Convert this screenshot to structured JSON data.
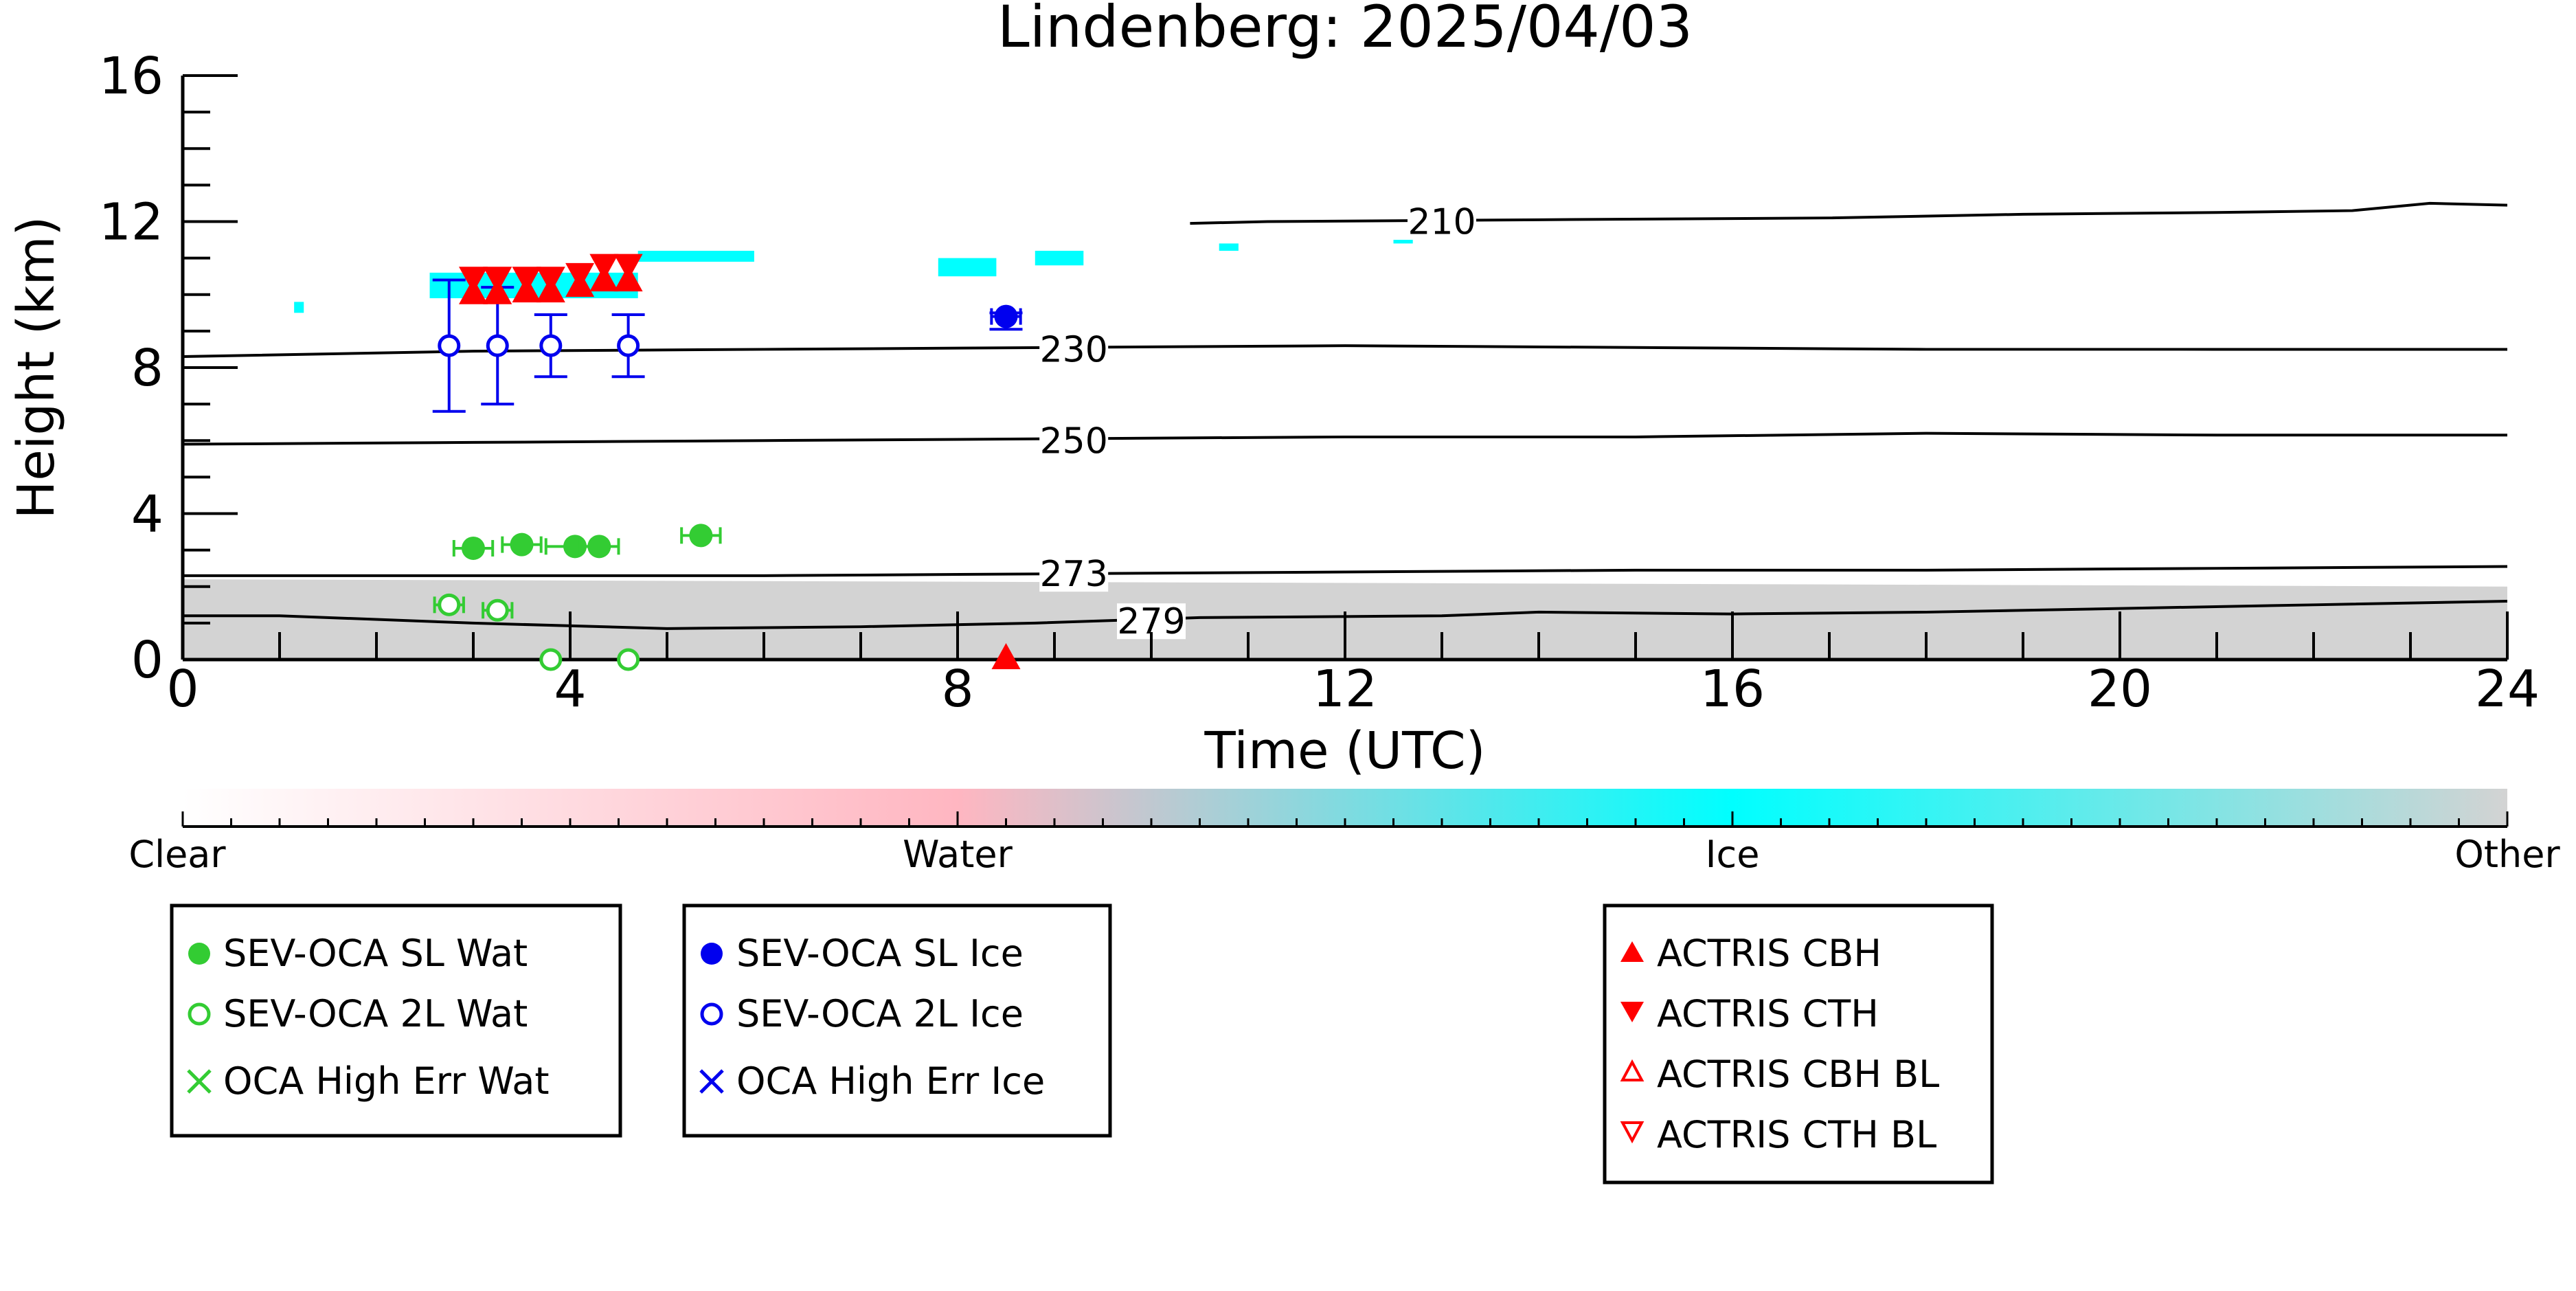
{
  "chart_data": {
    "type": "scatter",
    "title": "Lindenberg: 2025/04/03",
    "xlabel": "Time (UTC)",
    "ylabel": "Height (km)",
    "xlim": [
      0,
      24
    ],
    "ylim": [
      0,
      16
    ],
    "x_ticks": [
      "0",
      "4",
      "8",
      "12",
      "16",
      "20",
      "24"
    ],
    "y_ticks": [
      "0",
      "4",
      "8",
      "12",
      "16"
    ],
    "colors": {
      "water_green": "#33cc33",
      "ice_blue": "#0000ee",
      "actris_red": "#ff0000",
      "ice_cyan": "#00ffff",
      "other_grey": "#d3d3d3",
      "water_pink": "#ffb6c1"
    },
    "colorbar": {
      "labels": [
        "Clear",
        "Water",
        "Ice",
        "Other"
      ],
      "stops": [
        "#ffffff",
        "#ffb6c1",
        "#00ffff",
        "#d3d3d3"
      ]
    },
    "isotherms": [
      {
        "label": "210",
        "label_x": 13.0,
        "label_y": 12.0,
        "x": [
          10.4,
          11.2,
          14,
          17,
          19,
          21,
          22.4,
          23.2,
          24
        ],
        "y": [
          11.95,
          12.0,
          12.05,
          12.1,
          12.2,
          12.25,
          12.3,
          12.5,
          12.45
        ]
      },
      {
        "label": "230",
        "label_x": 9.2,
        "label_y": 8.5,
        "x": [
          0,
          3,
          6,
          9,
          12,
          15,
          18,
          21,
          24
        ],
        "y": [
          8.3,
          8.45,
          8.5,
          8.55,
          8.6,
          8.55,
          8.5,
          8.5,
          8.5
        ]
      },
      {
        "label": "250",
        "label_x": 9.2,
        "label_y": 6.0,
        "x": [
          0,
          3,
          6,
          9,
          12,
          15,
          18,
          21,
          24
        ],
        "y": [
          5.9,
          5.95,
          6.0,
          6.05,
          6.1,
          6.1,
          6.2,
          6.15,
          6.15
        ]
      },
      {
        "label": "273",
        "label_x": 9.2,
        "label_y": 2.35,
        "x": [
          0,
          3,
          6,
          9,
          12,
          15,
          18,
          21,
          24
        ],
        "y": [
          2.3,
          2.3,
          2.3,
          2.35,
          2.4,
          2.45,
          2.45,
          2.5,
          2.55
        ]
      },
      {
        "label": "279",
        "label_x": 10.0,
        "label_y": 1.05,
        "x": [
          0,
          1,
          3,
          5,
          7,
          8.8,
          10.5,
          13,
          14,
          16,
          18,
          20,
          22,
          24
        ],
        "y": [
          1.2,
          1.2,
          1.0,
          0.85,
          0.9,
          1.0,
          1.15,
          1.2,
          1.3,
          1.25,
          1.3,
          1.4,
          1.5,
          1.6
        ]
      }
    ],
    "series": [
      {
        "name": "SEV-OCA SL Wat",
        "marker": "filled-circle",
        "color": "#33cc33",
        "points": [
          {
            "x": 3.0,
            "y": 3.05,
            "xerr": 0.2
          },
          {
            "x": 3.5,
            "y": 3.15,
            "xerr": 0.2
          },
          {
            "x": 4.05,
            "y": 3.1,
            "xerr": 0.3
          },
          {
            "x": 4.3,
            "y": 3.1,
            "xerr": 0.2
          },
          {
            "x": 5.35,
            "y": 3.4,
            "xerr": 0.2
          }
        ]
      },
      {
        "name": "SEV-OCA 2L Wat",
        "marker": "open-circle",
        "color": "#33cc33",
        "points": [
          {
            "x": 2.75,
            "y": 1.5,
            "xerr": 0.15
          },
          {
            "x": 3.25,
            "y": 1.35,
            "xerr": 0.15
          },
          {
            "x": 3.8,
            "y": 0.0
          },
          {
            "x": 4.6,
            "y": 0.0
          }
        ]
      },
      {
        "name": "OCA High Err Wat",
        "marker": "x",
        "color": "#33cc33",
        "points": []
      },
      {
        "name": "SEV-OCA SL Ice",
        "marker": "filled-circle",
        "color": "#0000ee",
        "points": [
          {
            "x": 8.5,
            "y": 9.4,
            "xerr": 0.15,
            "yerr_low": 0.35,
            "yerr_high": 0.1
          }
        ]
      },
      {
        "name": "SEV-OCA 2L Ice",
        "marker": "open-circle",
        "color": "#0000ee",
        "points": [
          {
            "x": 2.75,
            "y": 8.6,
            "yerr_low": 1.8,
            "yerr_high": 1.8
          },
          {
            "x": 3.25,
            "y": 8.6,
            "yerr_low": 1.6,
            "yerr_high": 1.6
          },
          {
            "x": 3.8,
            "y": 8.6,
            "yerr_low": 0.85,
            "yerr_high": 0.85
          },
          {
            "x": 4.6,
            "y": 8.6,
            "yerr_low": 0.85,
            "yerr_high": 0.85
          }
        ]
      },
      {
        "name": "OCA High Err Ice",
        "marker": "x",
        "color": "#0000ee",
        "points": []
      },
      {
        "name": "ACTRIS CBH",
        "marker": "triangle-up",
        "color": "#ff0000",
        "points": [
          {
            "x": 3.0,
            "y": 10.0
          },
          {
            "x": 3.25,
            "y": 10.0
          },
          {
            "x": 3.55,
            "y": 10.05
          },
          {
            "x": 3.8,
            "y": 10.05
          },
          {
            "x": 4.1,
            "y": 10.2
          },
          {
            "x": 4.35,
            "y": 10.35
          },
          {
            "x": 4.6,
            "y": 10.35
          },
          {
            "x": 8.5,
            "y": 0.0
          }
        ]
      },
      {
        "name": "ACTRIS CTH",
        "marker": "triangle-down",
        "color": "#ff0000",
        "points": [
          {
            "x": 3.0,
            "y": 10.5
          },
          {
            "x": 3.25,
            "y": 10.5
          },
          {
            "x": 3.55,
            "y": 10.5
          },
          {
            "x": 3.8,
            "y": 10.5
          },
          {
            "x": 4.1,
            "y": 10.6
          },
          {
            "x": 4.35,
            "y": 10.85
          },
          {
            "x": 4.6,
            "y": 10.85
          }
        ]
      },
      {
        "name": "ACTRIS CBH BL",
        "marker": "open-triangle-up",
        "color": "#ff0000",
        "points": []
      },
      {
        "name": "ACTRIS CTH BL",
        "marker": "open-triangle-down",
        "color": "#ff0000",
        "points": []
      }
    ],
    "legends": [
      [
        "SEV-OCA SL Wat",
        "SEV-OCA 2L Wat",
        "OCA High Err Wat"
      ],
      [
        "SEV-OCA SL Ice",
        "SEV-OCA 2L Ice",
        "OCA High Err Ice"
      ],
      [
        "ACTRIS CBH",
        "ACTRIS CTH",
        "ACTRIS CBH BL",
        "ACTRIS CTH BL"
      ]
    ],
    "cloud_ice_patches": [
      {
        "x0": 2.55,
        "x1": 4.7,
        "y0": 9.9,
        "y1": 10.6
      },
      {
        "x0": 4.7,
        "x1": 5.9,
        "y0": 10.9,
        "y1": 11.2
      },
      {
        "x0": 7.8,
        "x1": 8.4,
        "y0": 10.5,
        "y1": 11.0
      },
      {
        "x0": 8.8,
        "x1": 9.3,
        "y0": 10.8,
        "y1": 11.2
      },
      {
        "x0": 10.7,
        "x1": 10.9,
        "y0": 11.2,
        "y1": 11.4
      },
      {
        "x0": 12.5,
        "x1": 12.7,
        "y0": 11.4,
        "y1": 11.5
      },
      {
        "x0": 1.15,
        "x1": 1.25,
        "y0": 9.5,
        "y1": 9.8
      }
    ],
    "other_band": {
      "y_top_start": 2.2,
      "y_top_end": 2.0
    }
  }
}
